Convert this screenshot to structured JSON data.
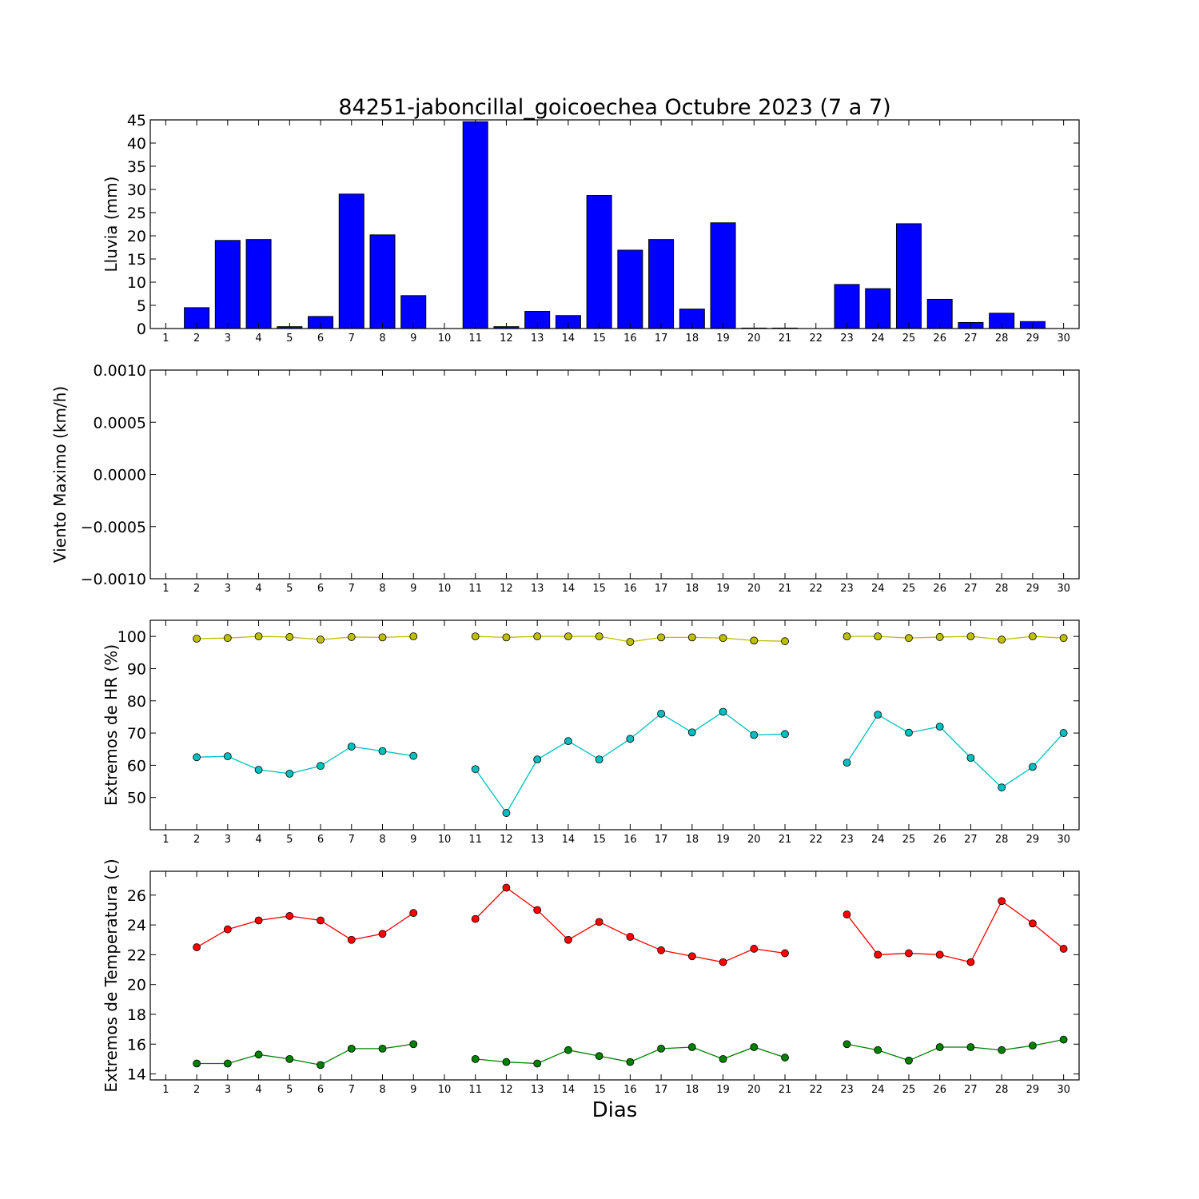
{
  "title": "84251-jaboncillal_goicoechea Octubre 2023  (7 a 7)",
  "xlabel": "Dias",
  "days": [
    1,
    2,
    3,
    4,
    5,
    6,
    7,
    8,
    9,
    10,
    11,
    12,
    13,
    14,
    15,
    16,
    17,
    18,
    19,
    20,
    21,
    22,
    23,
    24,
    25,
    26,
    27,
    28,
    29,
    30
  ],
  "chart_data": [
    {
      "type": "bar",
      "ylabel": "Lluvia (mm)",
      "ylim": [
        0,
        45
      ],
      "yticks": [
        "0",
        "5",
        "10",
        "15",
        "20",
        "25",
        "30",
        "35",
        "40",
        "45"
      ],
      "categories": [
        1,
        2,
        3,
        4,
        5,
        6,
        7,
        8,
        9,
        10,
        11,
        12,
        13,
        14,
        15,
        16,
        17,
        18,
        19,
        20,
        21,
        22,
        23,
        24,
        25,
        26,
        27,
        28,
        29,
        30
      ],
      "values": [
        null,
        4.5,
        19.0,
        19.2,
        0.4,
        2.6,
        29.0,
        20.2,
        7.1,
        null,
        44.6,
        0.4,
        3.7,
        2.8,
        28.7,
        16.9,
        19.2,
        4.2,
        22.8,
        0.1,
        0.1,
        null,
        9.5,
        8.6,
        22.6,
        6.3,
        1.3,
        3.3,
        1.5,
        null
      ],
      "color": "#0000ff"
    },
    {
      "type": "line",
      "ylabel": "Viento Maximo (km/h)",
      "ylim": [
        -0.001,
        0.001
      ],
      "yticks": [
        "−0.0010",
        "−0.0005",
        "0.0000",
        "0.0005",
        "0.0010"
      ],
      "series": []
    },
    {
      "type": "line",
      "ylabel": "Extremos de HR (%)",
      "ylim": [
        40,
        105
      ],
      "yticks": [
        "50",
        "60",
        "70",
        "80",
        "90",
        "100"
      ],
      "x": [
        1,
        2,
        3,
        4,
        5,
        6,
        7,
        8,
        9,
        10,
        11,
        12,
        13,
        14,
        15,
        16,
        17,
        18,
        19,
        20,
        21,
        22,
        23,
        24,
        25,
        26,
        27,
        28,
        29,
        30
      ],
      "series": [
        {
          "color": "#bfbf00",
          "values": [
            null,
            99.3,
            99.5,
            100,
            99.8,
            99.0,
            99.8,
            99.7,
            100,
            null,
            100,
            99.7,
            100,
            100,
            100,
            98.3,
            99.7,
            99.7,
            99.5,
            98.7,
            98.5,
            null,
            100,
            100,
            99.5,
            99.8,
            100,
            99.0,
            100,
            99.5
          ]
        },
        {
          "color": "#00bfbf",
          "values": [
            null,
            62.5,
            62.8,
            58.6,
            57.4,
            59.8,
            65.8,
            64.4,
            62.9,
            null,
            58.8,
            45.2,
            61.8,
            67.5,
            61.8,
            68.2,
            76.0,
            70.2,
            76.6,
            69.4,
            69.7,
            null,
            60.8,
            75.7,
            70.1,
            72.0,
            62.3,
            53.1,
            59.5,
            70.0
          ]
        }
      ]
    },
    {
      "type": "line",
      "ylabel": "Extremos de Temperatura (c)",
      "ylim": [
        13.6,
        27.6
      ],
      "yticks": [
        "14",
        "16",
        "18",
        "20",
        "22",
        "24",
        "26"
      ],
      "x": [
        1,
        2,
        3,
        4,
        5,
        6,
        7,
        8,
        9,
        10,
        11,
        12,
        13,
        14,
        15,
        16,
        17,
        18,
        19,
        20,
        21,
        22,
        23,
        24,
        25,
        26,
        27,
        28,
        29,
        30
      ],
      "series": [
        {
          "color": "#ff0000",
          "values": [
            null,
            22.5,
            23.7,
            24.3,
            24.6,
            24.3,
            23.0,
            23.4,
            24.8,
            null,
            24.4,
            26.5,
            25.0,
            23.0,
            24.2,
            23.2,
            22.3,
            21.9,
            21.5,
            22.4,
            22.1,
            null,
            24.7,
            22.0,
            22.1,
            22.0,
            21.5,
            25.6,
            24.1,
            22.4
          ]
        },
        {
          "color": "#008000",
          "values": [
            null,
            14.7,
            14.7,
            15.3,
            15.0,
            14.6,
            15.7,
            15.7,
            16.0,
            null,
            15.0,
            14.8,
            14.7,
            15.6,
            15.2,
            14.8,
            15.7,
            15.8,
            15.0,
            15.8,
            15.1,
            null,
            16.0,
            15.6,
            14.9,
            15.8,
            15.8,
            15.6,
            15.9,
            16.3
          ]
        }
      ]
    }
  ]
}
